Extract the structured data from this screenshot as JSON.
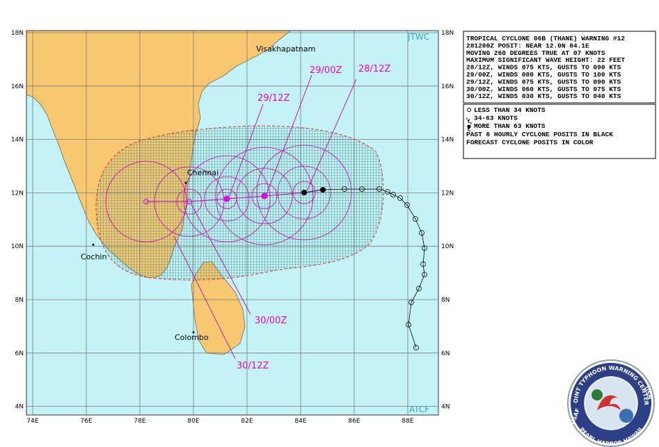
{
  "header": {
    "warning_lines": [
      "TROPICAL CYCLONE 06B (THANE) WARNING #12",
      "281200Z POSIT: NEAR 12.0N 84.1E",
      "MOVING 260 DEGREES TRUE AT 07 KNOTS",
      "MAXIMUM SIGNIFICANT WAVE HEIGHT: 22 FEET",
      "28/12Z, WINDS 075 KTS, GUSTS TO 090 KTS",
      "29/00Z, WINDS 080 KTS, GUSTS TO 100 KTS",
      "29/12Z, WINDS 075 KTS, GUSTS TO 090 KTS",
      "30/00Z, WINDS 060 KTS, GUSTS TO 075 KTS",
      "30/12Z, WINDS 030 KTS, GUSTS TO 040 KTS"
    ]
  },
  "legend": {
    "symbols": [
      "LESS THAN 34 KNOTS",
      "34-63 KNOTS",
      "MORE THAN 63 KNOTS"
    ],
    "notes": [
      "PAST 6 HOURLY CYCLONE POSITS IN BLACK",
      "FORECAST CYCLONE POSITS IN COLOR"
    ]
  },
  "map": {
    "lat_labels": [
      "18N",
      "16N",
      "14N",
      "12N",
      "10N",
      "8N",
      "6N",
      "4N"
    ],
    "lon_labels": [
      "74E",
      "76E",
      "78E",
      "80E",
      "82E",
      "84E",
      "86E",
      "88E"
    ],
    "places": {
      "visakhapatnam": "Visakhapatnam",
      "chennai": "Chennai",
      "cochin": "Cochin",
      "colombo": "Colombo"
    },
    "forecast_times": [
      "28/12Z",
      "29/00Z",
      "29/12Z",
      "30/00Z",
      "30/12Z"
    ],
    "source_labels": [
      "JTWC",
      "ATCF"
    ]
  },
  "logo": {
    "top": "JOINT TYPHOON WARNING CENTER",
    "bottom": "PEARL HARBOR HAWAII",
    "left": "USAF",
    "right": "USN"
  }
}
